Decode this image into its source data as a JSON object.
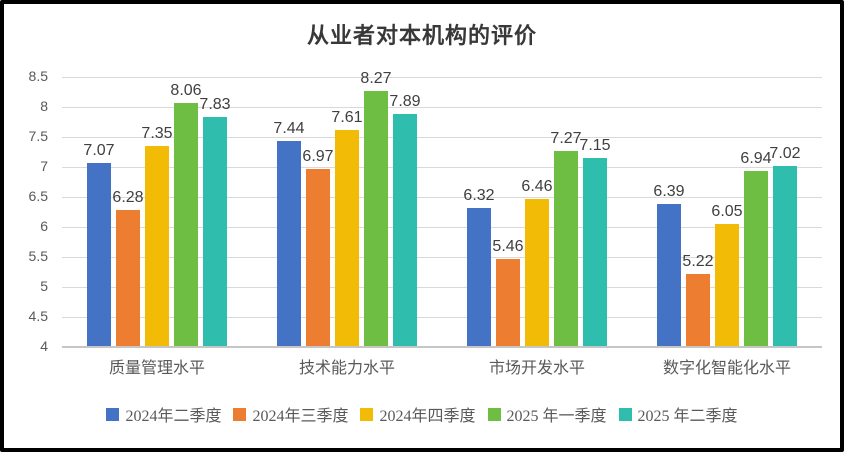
{
  "frame": {
    "background": "#ffffff",
    "border_color": "#000000"
  },
  "chart_data": {
    "type": "bar",
    "title": "从业者对本机构的评价",
    "xlabel": "",
    "ylabel": "",
    "categories": [
      "质量管理水平",
      "技术能力水平",
      "市场开发水平",
      "数字化智能化水平"
    ],
    "series": [
      {
        "name": "2024年二季度",
        "color": "#4472C4",
        "values": [
          7.07,
          7.44,
          6.32,
          6.39
        ]
      },
      {
        "name": "2024年三季度",
        "color": "#ED7D31",
        "values": [
          6.28,
          6.97,
          5.46,
          5.22
        ]
      },
      {
        "name": "2024年四季度",
        "color": "#F2BB05",
        "values": [
          7.35,
          7.61,
          6.46,
          6.05
        ]
      },
      {
        "name": "2025 年一季度",
        "color": "#6FBE44",
        "values": [
          8.06,
          8.27,
          7.27,
          6.94
        ]
      },
      {
        "name": "2025 年二季度",
        "color": "#2FBEAD",
        "values": [
          7.83,
          7.89,
          7.15,
          7.02
        ]
      }
    ],
    "ylim": [
      4,
      8.5
    ],
    "ytick_step": 0.5,
    "yticks": [
      "8.5",
      "8",
      "7.5",
      "7",
      "6.5",
      "6",
      "5.5",
      "5",
      "4.5",
      "4"
    ],
    "grid": true,
    "gridline_color": "#d9d9d9",
    "data_labels": true,
    "data_label_color": "#3f3f3f",
    "legend_position": "bottom"
  }
}
